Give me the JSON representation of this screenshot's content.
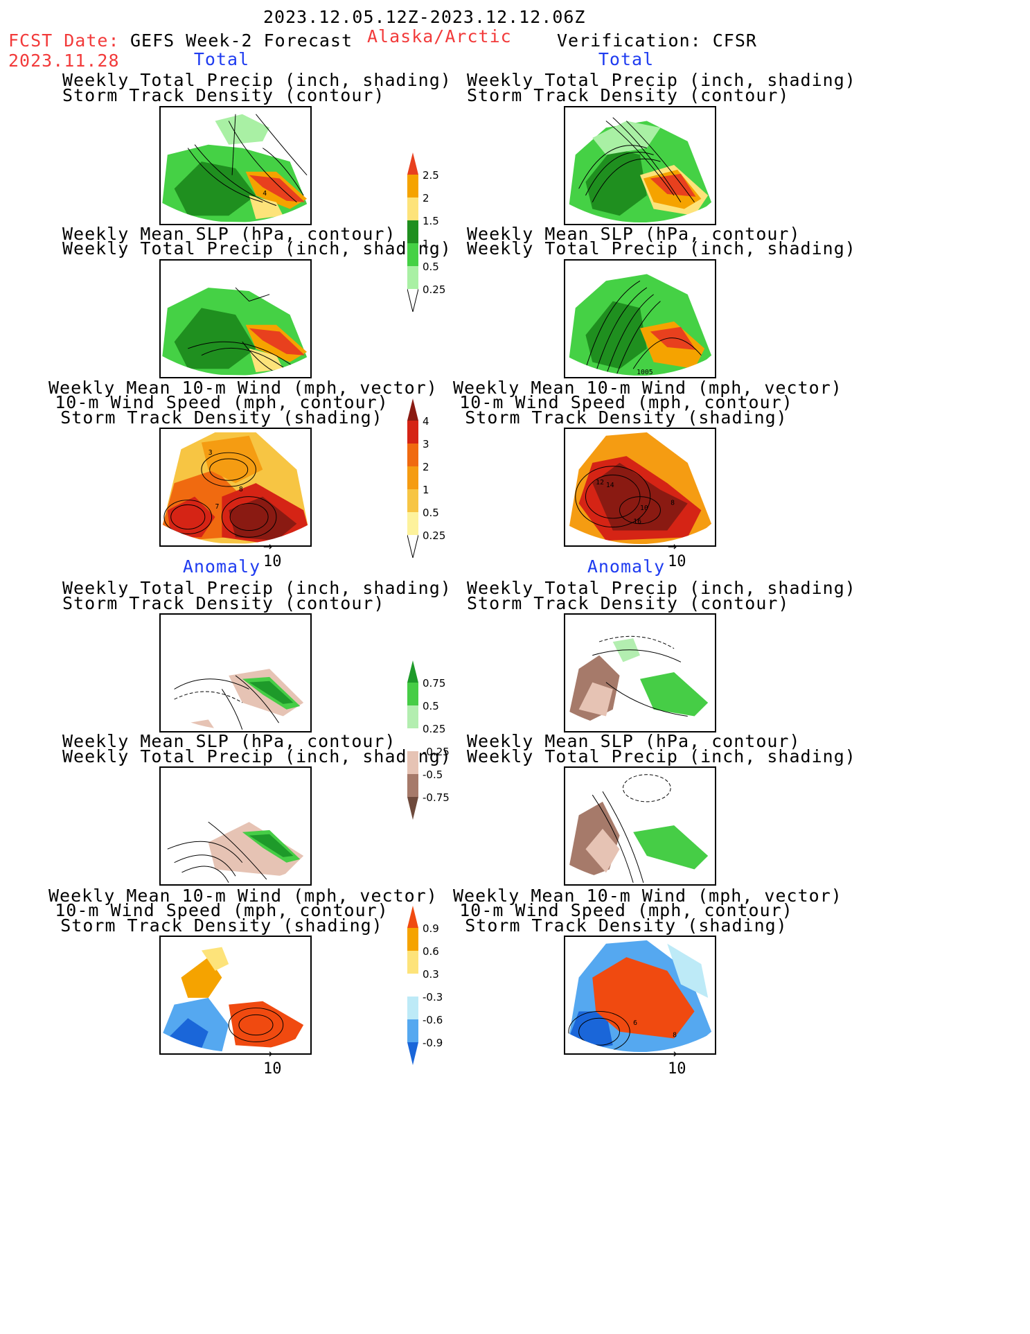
{
  "header": {
    "period": "2023.12.05.12Z-2023.12.12.06Z",
    "fcst_label": "FCST Date:",
    "fcst_date": "2023.11.28",
    "product": "GEFS Week-2 Forecast",
    "region": "Alaska/Arctic",
    "verification": "Verification: CFSR"
  },
  "sections": {
    "total": "Total",
    "anomaly": "Anomaly"
  },
  "titles": {
    "precip_track_1": "Weekly Total Precip (inch, shading)",
    "precip_track_2": "Storm Track Density (contour)",
    "slp_precip_1": "Weekly Mean SLP (hPa, contour)",
    "slp_precip_2": "Weekly Total Precip (inch, shading)",
    "wind_1": "Weekly Mean 10-m Wind (mph, vector)",
    "wind_2": "10-m Wind Speed (mph, contour)",
    "wind_3": "Storm Track Density (shading)"
  },
  "vector_ref": "10",
  "colorbars": {
    "precip_total": {
      "labels": [
        "2.5",
        "2",
        "1.5",
        "1",
        "0.5",
        "0.25"
      ],
      "colors": [
        "#e8401e",
        "#f5a300",
        "#fde37a",
        "#1f8f1f",
        "#45d145",
        "#a9f0a4"
      ]
    },
    "track_total": {
      "labels": [
        "4",
        "3",
        "2",
        "1",
        "0.5",
        "0.25"
      ],
      "colors": [
        "#8a1a12",
        "#d52415",
        "#f06a10",
        "#f59c12",
        "#f7c543",
        "#fdf29c"
      ]
    },
    "precip_anom": {
      "labels": [
        "0.75",
        "0.5",
        "0.25",
        "-0.25",
        "-0.5",
        "-0.75"
      ],
      "colors": [
        "#1e9a2a",
        "#46cd46",
        "#b3eeb0",
        "#ffffff",
        "#e6c3b4",
        "#a67a6a",
        "#6e4a3c"
      ]
    },
    "track_anom": {
      "labels": [
        "0.9",
        "0.6",
        "0.3",
        "-0.3",
        "-0.6",
        "-0.9"
      ],
      "colors": [
        "#f04a10",
        "#f5a300",
        "#fde37a",
        "#ffffff",
        "#bdeaf7",
        "#55a8f0",
        "#1a66d9"
      ]
    }
  },
  "panel_labels": {
    "fcst_total_track": [
      "4"
    ],
    "verif_total_slp": [
      "1005"
    ],
    "fcst_total_wind": [
      "3",
      "7",
      "8"
    ],
    "verif_total_wind": [
      "12",
      "14",
      "10",
      "16",
      "8"
    ],
    "verif_anom_wind": [
      "6",
      "8"
    ]
  }
}
